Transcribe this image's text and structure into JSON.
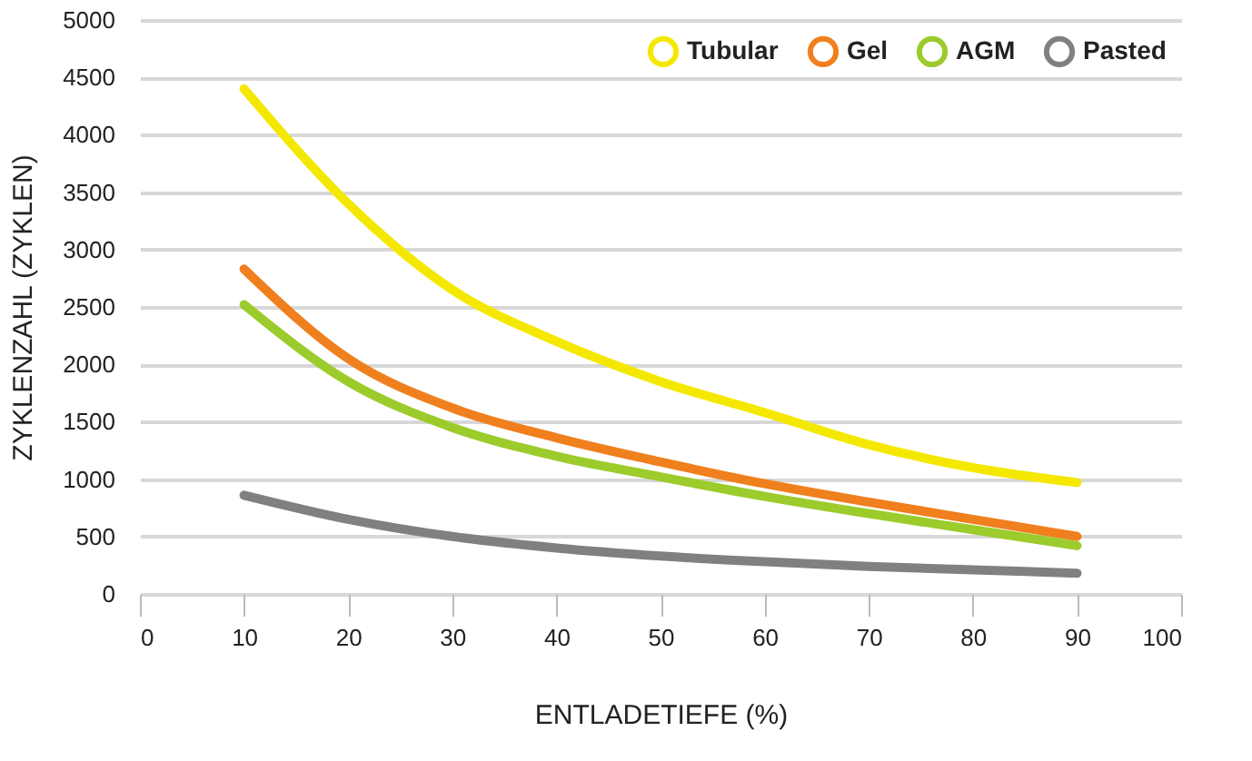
{
  "chart_data": {
    "type": "line",
    "xlabel": "ENTLADETIEFE (%)",
    "ylabel": "ZYKLENZAHL (ZYKLEN)",
    "x": [
      10,
      20,
      30,
      40,
      50,
      60,
      70,
      80,
      90
    ],
    "series": [
      {
        "name": "Tubular",
        "color": "#f5e800",
        "values": [
          4400,
          3400,
          2650,
          2200,
          1850,
          1580,
          1300,
          1100,
          970
        ]
      },
      {
        "name": "Gel",
        "color": "#f07f1e",
        "values": [
          2830,
          2050,
          1620,
          1360,
          1150,
          960,
          800,
          650,
          500
        ]
      },
      {
        "name": "AGM",
        "color": "#9ccb2c",
        "values": [
          2520,
          1850,
          1450,
          1200,
          1020,
          850,
          700,
          560,
          420
        ]
      },
      {
        "name": "Pasted",
        "color": "#808080",
        "values": [
          860,
          650,
          500,
          400,
          330,
          280,
          240,
          210,
          180
        ]
      }
    ],
    "xlim": [
      0,
      100
    ],
    "xticks": [
      0,
      10,
      20,
      30,
      40,
      50,
      60,
      70,
      80,
      90,
      100
    ],
    "ylim": [
      0,
      5000
    ],
    "yticks": [
      0,
      500,
      1000,
      1500,
      2000,
      2500,
      3000,
      3500,
      4000,
      4500,
      5000
    ],
    "grid": "y",
    "legend": "top right",
    "marker": "none",
    "line_style": "solid"
  }
}
